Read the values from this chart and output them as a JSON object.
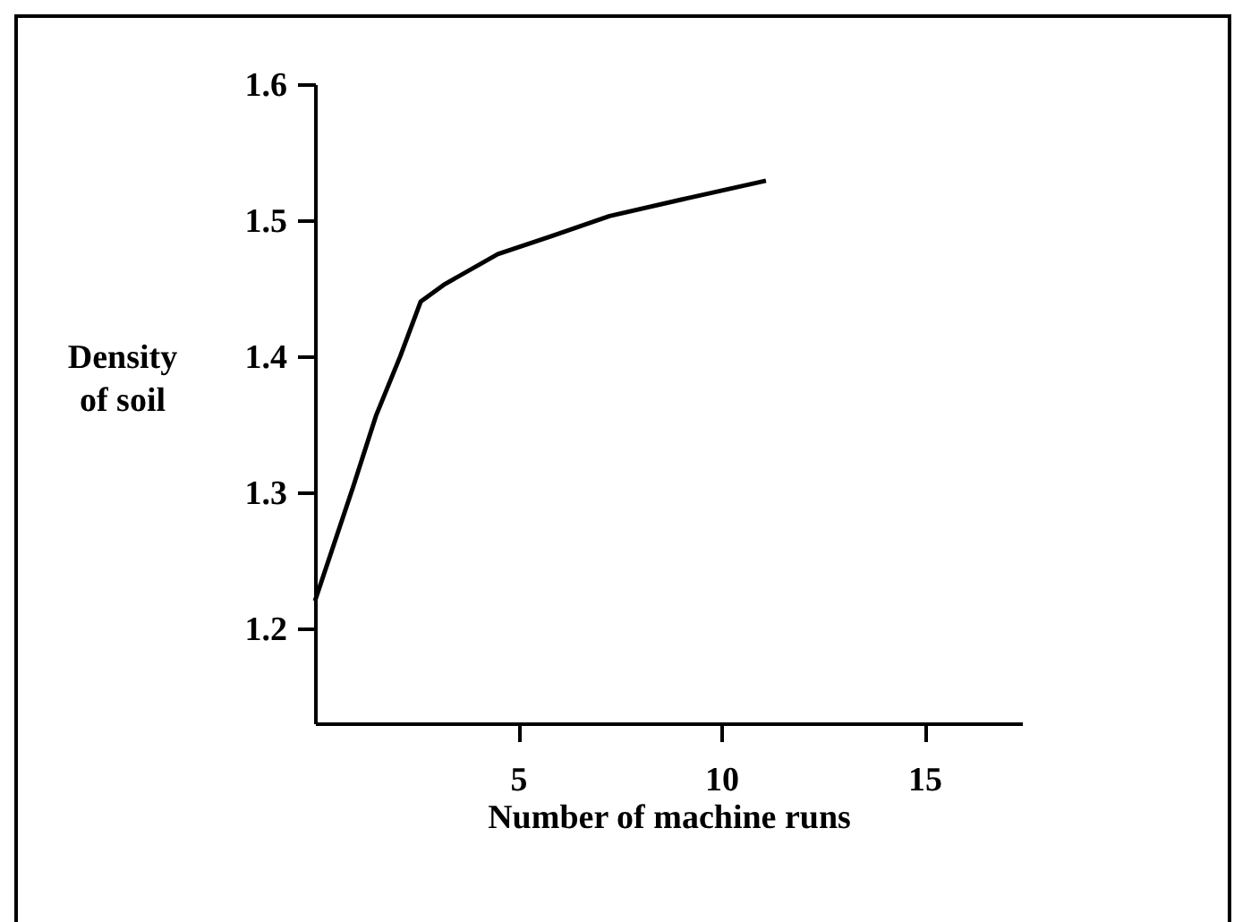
{
  "chart_data": {
    "type": "line",
    "xlabel": "Number of machine runs",
    "ylabel": "Density\nof soil",
    "x": [
      0,
      0.94,
      1.5,
      2.1,
      2.6,
      3.2,
      4.5,
      5.8,
      7.25,
      9.15,
      11.1
    ],
    "values": [
      1.22,
      1.304,
      1.356,
      1.4,
      1.44,
      1.453,
      1.475,
      1.488,
      1.503,
      1.516,
      1.529
    ],
    "color": "#000000",
    "xlim": [
      0,
      17.4
    ],
    "ylim": [
      1.13,
      1.6
    ],
    "xticks": [
      5,
      10,
      15
    ],
    "yticks": [
      1.2,
      1.3,
      1.4,
      1.5,
      1.6
    ]
  }
}
